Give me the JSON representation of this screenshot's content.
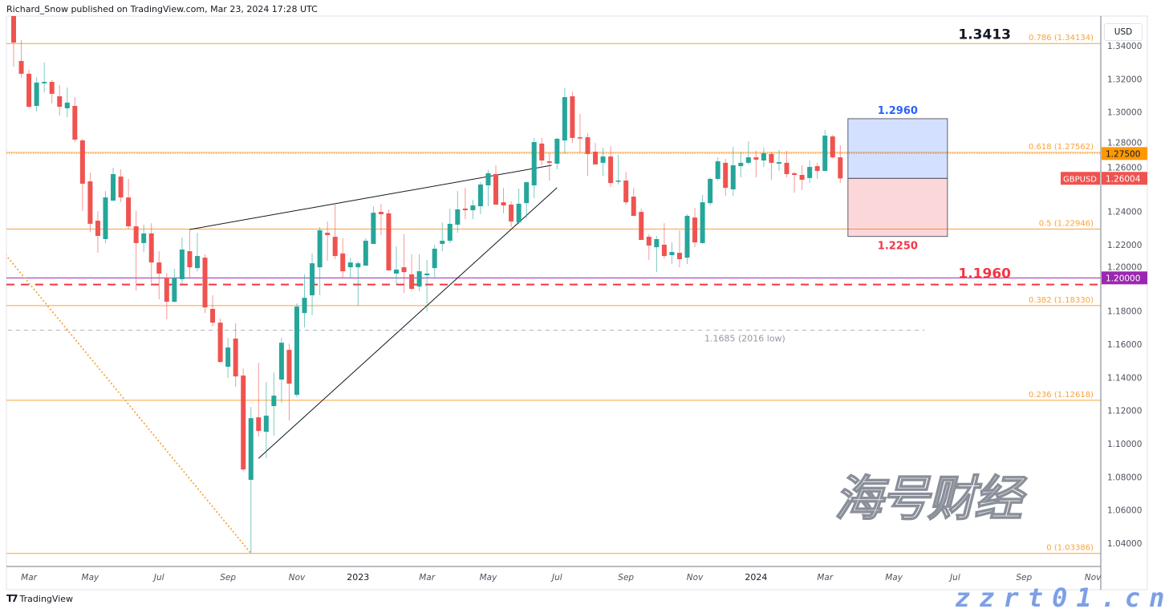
{
  "header": {
    "publisher_line": "Richard_Snow published on TradingView.com, Mar 23, 2024 17:28 UTC"
  },
  "footer": {
    "logo_text": "TradingView",
    "logo_mark": "TV"
  },
  "watermark": {
    "chinese": "海号财经",
    "domain": "zzrt01.cn"
  },
  "axis": {
    "currency_button": "USD"
  },
  "colors": {
    "up": "#26a69a",
    "down": "#ef5350",
    "fib": "#f7a33c",
    "purple": "#9c27b0",
    "red_line": "#f23645",
    "box_blue": "#2962ff",
    "box_red": "#f23645",
    "grey_line": "#b2b5be"
  },
  "chart_data": {
    "type": "candlestick",
    "symbol": "GBPUSD",
    "ylim": [
      1.03,
      1.36
    ],
    "y_ticks": [
      "1.34000",
      "1.32000",
      "1.30000",
      "1.28000",
      "1.26000",
      "1.24000",
      "1.22000",
      "1.20000",
      "1.18000",
      "1.16000",
      "1.14000",
      "1.12000",
      "1.10000",
      "1.08000",
      "1.06000",
      "1.04000"
    ],
    "x_ticks": [
      {
        "label": "Mar",
        "date": "2022-03-07"
      },
      {
        "label": "May",
        "date": "2022-05-02"
      },
      {
        "label": "Jul",
        "date": "2022-07-04"
      },
      {
        "label": "Sep",
        "date": "2022-09-05"
      },
      {
        "label": "Nov",
        "date": "2022-11-07"
      },
      {
        "label": "2023",
        "date": "2023-01-02",
        "year": true
      },
      {
        "label": "Mar",
        "date": "2023-03-06"
      },
      {
        "label": "May",
        "date": "2023-05-01"
      },
      {
        "label": "Jul",
        "date": "2023-07-03"
      },
      {
        "label": "Sep",
        "date": "2023-09-04"
      },
      {
        "label": "Nov",
        "date": "2023-11-06"
      },
      {
        "label": "2024",
        "date": "2024-01-01",
        "year": true
      },
      {
        "label": "Mar",
        "date": "2024-03-04"
      },
      {
        "label": "May",
        "date": "2024-05-06"
      },
      {
        "label": "Jul",
        "date": "2024-07-01"
      },
      {
        "label": "Sep",
        "date": "2024-09-02"
      },
      {
        "label": "Nov",
        "date": "2024-11-04"
      }
    ],
    "candles_columns": [
      "date",
      "open",
      "high",
      "low",
      "close"
    ],
    "candles": [
      [
        "2022-02-21",
        1.359,
        1.364,
        1.3274,
        1.3419
      ],
      [
        "2022-02-28",
        1.3308,
        1.3434,
        1.3207,
        1.3231
      ],
      [
        "2022-03-07",
        1.3231,
        1.3255,
        1.3027,
        1.3032
      ],
      [
        "2022-03-14",
        1.3037,
        1.3211,
        1.3003,
        1.3178
      ],
      [
        "2022-03-21",
        1.3173,
        1.3299,
        1.3119,
        1.3182
      ],
      [
        "2022-03-28",
        1.3182,
        1.3192,
        1.3052,
        1.311
      ],
      [
        "2022-04-04",
        1.3095,
        1.3163,
        1.2979,
        1.3032
      ],
      [
        "2022-04-11",
        1.3023,
        1.3148,
        1.2969,
        1.3057
      ],
      [
        "2022-04-18",
        1.3037,
        1.309,
        1.2819,
        1.2834
      ],
      [
        "2022-04-25",
        1.2829,
        1.2839,
        1.2403,
        1.2568
      ],
      [
        "2022-05-02",
        1.2582,
        1.2635,
        1.2277,
        1.2326
      ],
      [
        "2022-05-09",
        1.2345,
        1.2403,
        1.2151,
        1.2253
      ],
      [
        "2022-05-16",
        1.2234,
        1.2524,
        1.221,
        1.2485
      ],
      [
        "2022-05-23",
        1.2466,
        1.2664,
        1.2466,
        1.2626
      ],
      [
        "2022-05-30",
        1.2611,
        1.2655,
        1.2456,
        1.2485
      ],
      [
        "2022-06-06",
        1.2485,
        1.2597,
        1.2297,
        1.2311
      ],
      [
        "2022-06-13",
        1.2311,
        1.2403,
        1.1924,
        1.221
      ],
      [
        "2022-06-20",
        1.221,
        1.2321,
        1.2156,
        1.2268
      ],
      [
        "2022-06-27",
        1.2268,
        1.233,
        1.1968,
        1.2093
      ],
      [
        "2022-07-04",
        1.2093,
        1.2161,
        1.1871,
        1.2026
      ],
      [
        "2022-07-11",
        1.2001,
        1.203,
        1.175,
        1.1856
      ],
      [
        "2022-07-18",
        1.1856,
        1.2055,
        1.1851,
        1.2001
      ],
      [
        "2022-07-25",
        1.1992,
        1.2243,
        1.1953,
        1.2171
      ],
      [
        "2022-08-01",
        1.2161,
        1.2292,
        1.1997,
        1.2064
      ],
      [
        "2022-08-08",
        1.2059,
        1.2272,
        1.204,
        1.2132
      ],
      [
        "2022-08-15",
        1.2122,
        1.2142,
        1.1788,
        1.1822
      ],
      [
        "2022-08-22",
        1.1813,
        1.1895,
        1.1706,
        1.173
      ],
      [
        "2022-08-29",
        1.173,
        1.1755,
        1.1488,
        1.1493
      ],
      [
        "2022-09-05",
        1.1464,
        1.1638,
        1.1396,
        1.158
      ],
      [
        "2022-09-12",
        1.1634,
        1.1726,
        1.1343,
        1.1406
      ],
      [
        "2022-09-19",
        1.1411,
        1.1454,
        1.0835,
        1.0845
      ],
      [
        "2022-09-26",
        1.0782,
        1.1222,
        1.0339,
        1.1154
      ],
      [
        "2022-10-03",
        1.1159,
        1.1488,
        1.1043,
        1.1077
      ],
      [
        "2022-10-10",
        1.1072,
        1.1372,
        1.0912,
        1.1169
      ],
      [
        "2022-10-17",
        1.1227,
        1.143,
        1.1048,
        1.129
      ],
      [
        "2022-10-24",
        1.1387,
        1.1638,
        1.1246,
        1.1609
      ],
      [
        "2022-10-31",
        1.1566,
        1.1604,
        1.114,
        1.1362
      ],
      [
        "2022-11-07",
        1.1295,
        1.1846,
        1.128,
        1.1827
      ],
      [
        "2022-11-14",
        1.1788,
        1.2021,
        1.1701,
        1.188
      ],
      [
        "2022-11-21",
        1.1895,
        1.2147,
        1.1774,
        1.2088
      ],
      [
        "2022-11-28",
        1.2064,
        1.2306,
        1.1895,
        1.2287
      ],
      [
        "2022-12-05",
        1.2272,
        1.234,
        1.2103,
        1.2258
      ],
      [
        "2022-12-12",
        1.2248,
        1.2442,
        1.2113,
        1.2132
      ],
      [
        "2022-12-19",
        1.2147,
        1.2239,
        1.1997,
        1.204
      ],
      [
        "2022-12-26",
        1.2064,
        1.2122,
        1.1997,
        1.2093
      ],
      [
        "2023-01-02",
        1.2064,
        1.2098,
        1.1832,
        1.2088
      ],
      [
        "2023-01-09",
        1.2074,
        1.2239,
        1.2074,
        1.2224
      ],
      [
        "2023-01-16",
        1.2205,
        1.2432,
        1.2205,
        1.2393
      ],
      [
        "2023-01-23",
        1.2398,
        1.2447,
        1.2258,
        1.2384
      ],
      [
        "2023-01-30",
        1.2389,
        1.2413,
        1.2045,
        1.2045
      ],
      [
        "2023-02-06",
        1.2026,
        1.219,
        1.1958,
        1.205
      ],
      [
        "2023-02-13",
        1.2064,
        1.2263,
        1.1909,
        1.2035
      ],
      [
        "2023-02-20",
        1.2021,
        1.2142,
        1.1924,
        1.1934
      ],
      [
        "2023-02-27",
        1.1948,
        1.2142,
        1.1919,
        1.204
      ],
      [
        "2023-03-06",
        1.2016,
        1.2108,
        1.1798,
        1.2026
      ],
      [
        "2023-03-13",
        1.2059,
        1.22,
        1.2006,
        1.2176
      ],
      [
        "2023-03-20",
        1.2205,
        1.2335,
        1.2161,
        1.2224
      ],
      [
        "2023-03-27",
        1.2224,
        1.2418,
        1.221,
        1.2326
      ],
      [
        "2023-04-03",
        1.2321,
        1.2524,
        1.2272,
        1.2413
      ],
      [
        "2023-04-10",
        1.2418,
        1.2543,
        1.2355,
        1.2408
      ],
      [
        "2023-04-17",
        1.2408,
        1.2471,
        1.2355,
        1.2437
      ],
      [
        "2023-04-24",
        1.2432,
        1.2577,
        1.2384,
        1.2563
      ],
      [
        "2023-05-01",
        1.2558,
        1.265,
        1.2432,
        1.2631
      ],
      [
        "2023-05-08",
        1.2626,
        1.2679,
        1.2442,
        1.2442
      ],
      [
        "2023-05-15",
        1.2456,
        1.2543,
        1.2389,
        1.2437
      ],
      [
        "2023-05-22",
        1.2442,
        1.2461,
        1.2306,
        1.234
      ],
      [
        "2023-05-29",
        1.2335,
        1.2539,
        1.2326,
        1.2447
      ],
      [
        "2023-06-05",
        1.2451,
        1.2582,
        1.236,
        1.2577
      ],
      [
        "2023-06-12",
        1.2558,
        1.2844,
        1.2481,
        1.2819
      ],
      [
        "2023-06-19",
        1.281,
        1.2844,
        1.2679,
        1.2708
      ],
      [
        "2023-06-26",
        1.2703,
        1.2752,
        1.2587,
        1.2694
      ],
      [
        "2023-07-03",
        1.2689,
        1.2844,
        1.2655,
        1.2839
      ],
      [
        "2023-07-10",
        1.2829,
        1.3144,
        1.2747,
        1.309
      ],
      [
        "2023-07-17",
        1.3095,
        1.3124,
        1.2814,
        1.2844
      ],
      [
        "2023-07-24",
        1.2848,
        1.2989,
        1.2756,
        1.2844
      ],
      [
        "2023-07-31",
        1.2848,
        1.2873,
        1.2616,
        1.2747
      ],
      [
        "2023-08-07",
        1.2761,
        1.2814,
        1.2684,
        1.2684
      ],
      [
        "2023-08-14",
        1.2694,
        1.2785,
        1.2616,
        1.2732
      ],
      [
        "2023-08-21",
        1.2732,
        1.2795,
        1.2548,
        1.2572
      ],
      [
        "2023-08-28",
        1.2582,
        1.2742,
        1.2563,
        1.2587
      ],
      [
        "2023-09-04",
        1.2587,
        1.264,
        1.2442,
        1.2456
      ],
      [
        "2023-09-11",
        1.249,
        1.2543,
        1.2374,
        1.2374
      ],
      [
        "2023-09-18",
        1.2398,
        1.2418,
        1.2229,
        1.2229
      ],
      [
        "2023-09-25",
        1.2248,
        1.2263,
        1.2108,
        1.2195
      ],
      [
        "2023-10-02",
        1.2185,
        1.2253,
        1.2035,
        1.2234
      ],
      [
        "2023-10-09",
        1.22,
        1.233,
        1.2118,
        1.2132
      ],
      [
        "2023-10-16",
        1.2137,
        1.2214,
        1.2084,
        1.2156
      ],
      [
        "2023-10-23",
        1.2151,
        1.2287,
        1.2064,
        1.2113
      ],
      [
        "2023-10-30",
        1.2122,
        1.2384,
        1.2084,
        1.2374
      ],
      [
        "2023-11-06",
        1.2364,
        1.2422,
        1.2185,
        1.2214
      ],
      [
        "2023-11-13",
        1.221,
        1.25,
        1.2205,
        1.2456
      ],
      [
        "2023-11-20",
        1.2451,
        1.2606,
        1.2437,
        1.2597
      ],
      [
        "2023-11-27",
        1.2597,
        1.2727,
        1.2587,
        1.2703
      ],
      [
        "2023-12-04",
        1.2694,
        1.2718,
        1.2495,
        1.2543
      ],
      [
        "2023-12-11",
        1.2534,
        1.279,
        1.2495,
        1.2679
      ],
      [
        "2023-12-18",
        1.2674,
        1.2761,
        1.2606,
        1.2694
      ],
      [
        "2023-12-25",
        1.2694,
        1.2824,
        1.2684,
        1.2727
      ],
      [
        "2024-01-01",
        1.2727,
        1.2766,
        1.2606,
        1.2713
      ],
      [
        "2024-01-08",
        1.2708,
        1.2785,
        1.2669,
        1.2752
      ],
      [
        "2024-01-15",
        1.2747,
        1.2761,
        1.2592,
        1.2694
      ],
      [
        "2024-01-22",
        1.2689,
        1.2771,
        1.2645,
        1.2698
      ],
      [
        "2024-01-29",
        1.2694,
        1.2766,
        1.2606,
        1.2626
      ],
      [
        "2024-02-05",
        1.2631,
        1.264,
        1.2514,
        1.2621
      ],
      [
        "2024-02-12",
        1.2621,
        1.2679,
        1.2529,
        1.2592
      ],
      [
        "2024-02-19",
        1.2602,
        1.2708,
        1.2572,
        1.2669
      ],
      [
        "2024-02-26",
        1.2674,
        1.2694,
        1.2597,
        1.2645
      ],
      [
        "2024-03-04",
        1.2645,
        1.2892,
        1.2645,
        1.2858
      ],
      [
        "2024-03-11",
        1.2853,
        1.2863,
        1.2718,
        1.2727
      ],
      [
        "2024-03-18",
        1.2727,
        1.28,
        1.2572,
        1.26
      ]
    ],
    "last_price": {
      "symbol": "GBPUSD",
      "value": "1.26004"
    },
    "fib_levels": [
      {
        "label": "0.786 (1.34134)",
        "price": 1.34134
      },
      {
        "label": "0.618 (1.27562)",
        "price": 1.27562
      },
      {
        "label": "0.5 (1.22946)",
        "price": 1.22946
      },
      {
        "label": "0.382 (1.18330)",
        "price": 1.1833
      },
      {
        "label": "0.236 (1.12618)",
        "price": 1.12618
      },
      {
        "label": "0 (1.03386)",
        "price": 1.03386
      }
    ],
    "horizontal_lines": [
      {
        "name": "level-1.2750",
        "price": 1.275,
        "style": "dotted",
        "color": "#ff9800",
        "axis_label": "1.27500"
      },
      {
        "name": "level-1.2000",
        "price": 1.2,
        "style": "solid",
        "color": "#9c27b0",
        "axis_label": "1.20000"
      },
      {
        "name": "level-1.1960",
        "price": 1.196,
        "style": "dashed",
        "color": "#f23645",
        "annotation": "1.1960"
      },
      {
        "name": "level-2016-low",
        "price": 1.1685,
        "style": "dashed",
        "color": "#b2b5be",
        "end": "2024-06-03",
        "annotation": "1.1685 (2016 low)"
      }
    ],
    "annotations": [
      {
        "name": "level-1.3413",
        "text": "1.3413",
        "price": 1.3413
      }
    ],
    "trendlines": [
      {
        "name": "upper-trendline",
        "from": [
          "2022-08-01",
          1.2292
        ],
        "to": [
          "2023-06-28",
          1.2679
        ],
        "style": "solid"
      },
      {
        "name": "lower-trendline",
        "from": [
          "2022-10-03",
          1.0912
        ],
        "to": [
          "2023-07-03",
          1.2544
        ],
        "style": "solid"
      },
      {
        "name": "fib-anchor-line",
        "from": [
          "2022-02-14",
          1.2137
        ],
        "to": [
          "2022-09-26",
          1.0339
        ],
        "style": "dotted"
      }
    ],
    "projection_box": {
      "start": "2024-03-25",
      "end": "2024-06-24",
      "top": 1.296,
      "mid": 1.26,
      "bottom": 1.225,
      "top_label": "1.2960",
      "bottom_label": "1.2250"
    }
  }
}
